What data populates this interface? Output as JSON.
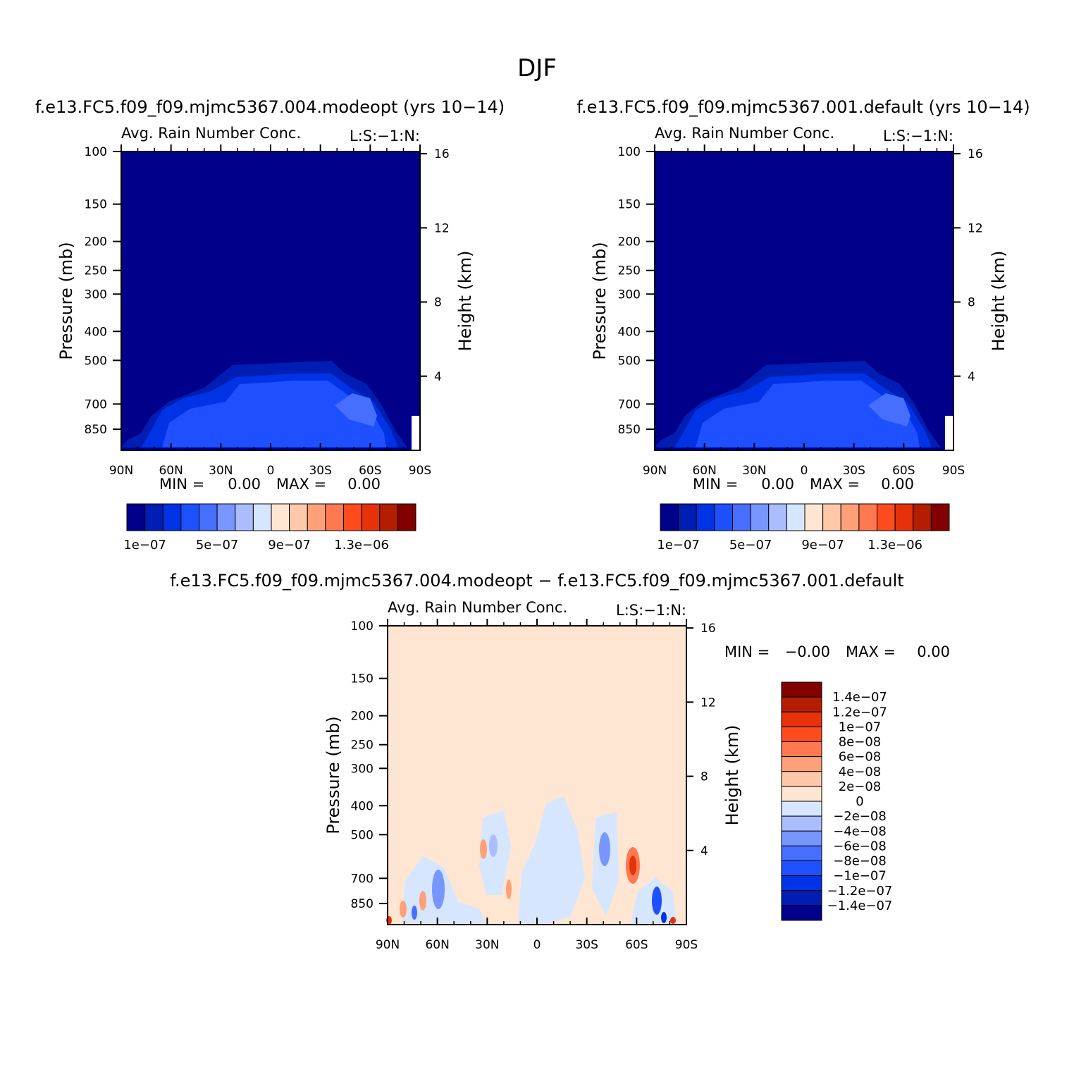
{
  "figure": {
    "title": "DJF",
    "colors": {
      "seq": [
        "#00008b",
        "#001eb4",
        "#0032e6",
        "#1e50ff",
        "#466eff",
        "#7896ff",
        "#aabeff",
        "#d7e6ff",
        "#ffe6d2",
        "#ffc8aa",
        "#ffa078",
        "#ff7850",
        "#ff4b1e",
        "#e6320a",
        "#b41e00",
        "#820000"
      ],
      "diff": [
        "#00008b",
        "#001eb4",
        "#0032e6",
        "#1e50ff",
        "#466eff",
        "#7896ff",
        "#aabeff",
        "#d7e6ff",
        "#ffe6d2",
        "#ffc8aa",
        "#ffa078",
        "#ff7850",
        "#ff4b1e",
        "#e6320a",
        "#b41e00",
        "#820000"
      ]
    }
  },
  "chart_data": [
    {
      "type": "heatmap",
      "title": "f.e13.FC5.f09_f09.mjmc5367.004.modeopt (yrs 10−14)",
      "subtitle_left": "Avg. Rain Number Conc.",
      "subtitle_right": "L:S:−1:N:",
      "xlabel": "",
      "ylabel": "Pressure (mb)",
      "ylabel_right": "Height (km)",
      "x_ticks": [
        "90N",
        "60N",
        "30N",
        "0",
        "30S",
        "60S",
        "90S"
      ],
      "x_values": [
        90,
        60,
        30,
        0,
        -30,
        -60,
        -90
      ],
      "xlim": [
        90,
        -90
      ],
      "y_ticks": [
        "100",
        "150",
        "200",
        "250",
        "300",
        "400",
        "500",
        "700",
        "850"
      ],
      "y_values": [
        100,
        150,
        200,
        250,
        300,
        400,
        500,
        700,
        850
      ],
      "ylim": [
        100,
        1000
      ],
      "y_scale": "log",
      "y_right_ticks": [
        "16",
        "12",
        "8",
        "4"
      ],
      "y_right_values": [
        16,
        12,
        8,
        4
      ],
      "stats": {
        "min_label": "MIN =",
        "min_value": "0.00",
        "max_label": "MAX =",
        "max_value": "0.00"
      },
      "colorbar": {
        "orientation": "horizontal",
        "tick_labels": [
          "1e−07",
          "5e−07",
          "9e−07",
          "1.3e−06"
        ]
      }
    },
    {
      "type": "heatmap",
      "title": "f.e13.FC5.f09_f09.mjmc5367.001.default (yrs 10−14)",
      "subtitle_left": "Avg. Rain Number Conc.",
      "subtitle_right": "L:S:−1:N:",
      "xlabel": "",
      "ylabel": "Pressure (mb)",
      "ylabel_right": "Height (km)",
      "x_ticks": [
        "90N",
        "60N",
        "30N",
        "0",
        "30S",
        "60S",
        "90S"
      ],
      "x_values": [
        90,
        60,
        30,
        0,
        -30,
        -60,
        -90
      ],
      "xlim": [
        90,
        -90
      ],
      "y_ticks": [
        "100",
        "150",
        "200",
        "250",
        "300",
        "400",
        "500",
        "700",
        "850"
      ],
      "y_values": [
        100,
        150,
        200,
        250,
        300,
        400,
        500,
        700,
        850
      ],
      "ylim": [
        100,
        1000
      ],
      "y_scale": "log",
      "y_right_ticks": [
        "16",
        "12",
        "8",
        "4"
      ],
      "y_right_values": [
        16,
        12,
        8,
        4
      ],
      "stats": {
        "min_label": "MIN =",
        "min_value": "0.00",
        "max_label": "MAX =",
        "max_value": "0.00"
      },
      "colorbar": {
        "orientation": "horizontal",
        "tick_labels": [
          "1e−07",
          "5e−07",
          "9e−07",
          "1.3e−06"
        ]
      }
    },
    {
      "type": "heatmap",
      "title": "f.e13.FC5.f09_f09.mjmc5367.004.modeopt − f.e13.FC5.f09_f09.mjmc5367.001.default",
      "subtitle_left": "Avg. Rain Number Conc.",
      "subtitle_right": "L:S:−1:N:",
      "xlabel": "",
      "ylabel": "Pressure (mb)",
      "ylabel_right": "Height (km)",
      "x_ticks": [
        "90N",
        "60N",
        "30N",
        "0",
        "30S",
        "60S",
        "90S"
      ],
      "x_values": [
        90,
        60,
        30,
        0,
        -30,
        -60,
        -90
      ],
      "xlim": [
        90,
        -90
      ],
      "y_ticks": [
        "100",
        "150",
        "200",
        "250",
        "300",
        "400",
        "500",
        "700",
        "850"
      ],
      "y_values": [
        100,
        150,
        200,
        250,
        300,
        400,
        500,
        700,
        850
      ],
      "ylim": [
        100,
        1000
      ],
      "y_scale": "log",
      "y_right_ticks": [
        "16",
        "12",
        "8",
        "4"
      ],
      "y_right_values": [
        16,
        12,
        8,
        4
      ],
      "stats": {
        "min_label": "MIN =",
        "min_value": "−0.00",
        "max_label": "MAX =",
        "max_value": "0.00"
      },
      "colorbar": {
        "orientation": "vertical",
        "tick_labels": [
          "1.4e−07",
          "1.2e−07",
          "1e−07",
          "8e−08",
          "6e−08",
          "4e−08",
          "2e−08",
          "0",
          "−2e−08",
          "−4e−08",
          "−6e−08",
          "−8e−08",
          "−1e−07",
          "−1.2e−07",
          "−1.4e−07"
        ]
      }
    }
  ]
}
